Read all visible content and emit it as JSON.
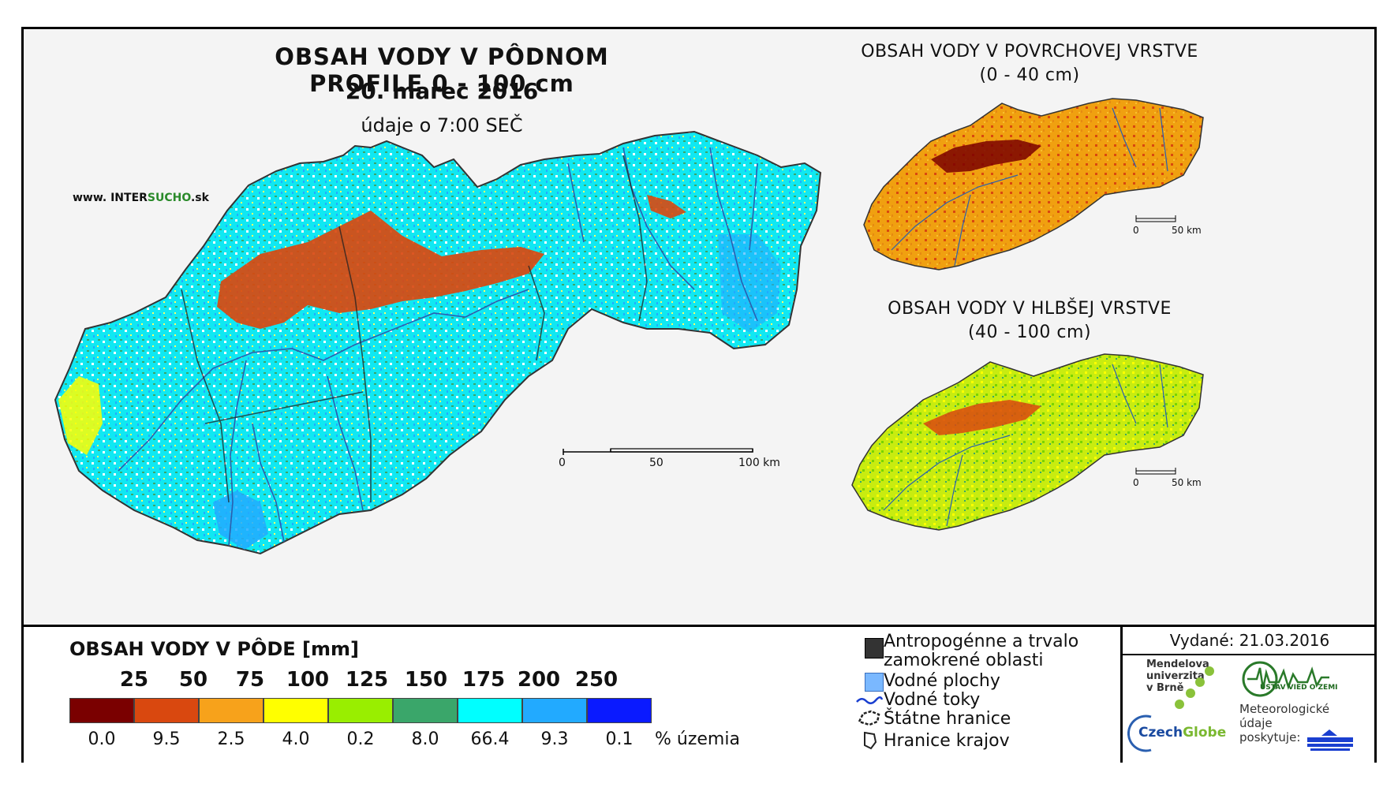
{
  "main_map": {
    "title": "OBSAH VODY V PÔDNOM PROFILE 0 - 100 cm",
    "date": "20. marec 2016",
    "time_note": "údaje o 7:00 SEČ",
    "site_prefix": "www. INTER",
    "site_green": "SUCHO",
    "site_suffix": ".sk",
    "scale_labels": [
      "0",
      "50",
      "100 km"
    ]
  },
  "surface_map": {
    "title": "OBSAH VODY V POVRCHOVEJ VRSTVE",
    "subtitle": "(0 - 40 cm)",
    "scale_labels": [
      "0",
      "50 km"
    ]
  },
  "deep_map": {
    "title": "OBSAH VODY V HLBŠEJ VRSTVE",
    "subtitle": "(40 - 100 cm)",
    "scale_labels": [
      "0",
      "50 km"
    ]
  },
  "legend": {
    "title": "OBSAH VODY V PÔDE [mm]",
    "thresholds": [
      "25",
      "50",
      "75",
      "100",
      "125",
      "150",
      "175",
      "200",
      "250"
    ],
    "colors": [
      "#7a0000",
      "#d9480f",
      "#f7a21b",
      "#ffff00",
      "#99ee00",
      "#3aa66a",
      "#00ffff",
      "#22aaff",
      "#0a1aff"
    ],
    "percentages": [
      "0.0",
      "9.5",
      "2.5",
      "4.0",
      "0.2",
      "8.0",
      "66.4",
      "9.3",
      "0.1"
    ],
    "percent_label": "% územia"
  },
  "key": {
    "anthropogenic_line1": "Antropogénne a trvalo",
    "anthropogenic_line2": "zamokrené oblasti",
    "water_bodies": "Vodné plochy",
    "rivers": "Vodné toky",
    "state_border": "Štátne hranice",
    "region_border": "Hranice krajov"
  },
  "issued": "Vydané: 21.03.2016",
  "logos": {
    "mendel_line1": "Mendelova",
    "mendel_line2": "univerzita",
    "mendel_line3": "v Brně",
    "czechglobe_a": "Czech",
    "czechglobe_b": "Globe",
    "ustav": "ÚSTAV VIED O ZEMI",
    "met_line1": "Meteorologické",
    "met_line2": "údaje",
    "met_line3": "poskytuje:"
  }
}
